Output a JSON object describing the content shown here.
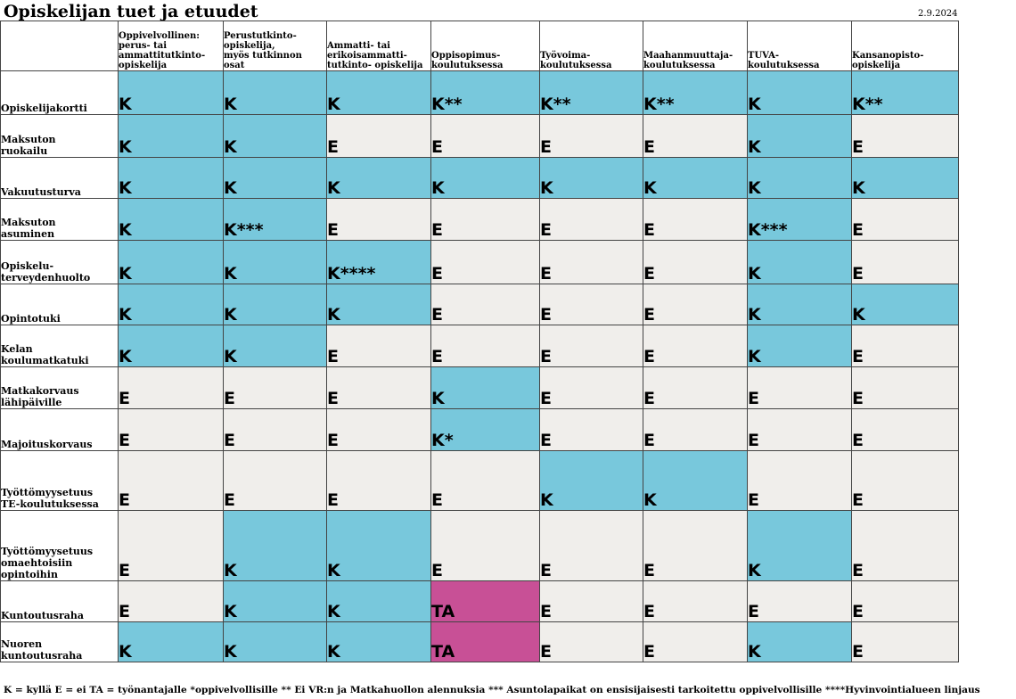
{
  "title": "Opiskelijan tuet ja etuudet",
  "date": "2.9.2024",
  "columns": [
    "Oppivelvollinen:\nperus- tai\nammattitutkinto-\nopiskelija",
    "Perustutkinto-\nopiskelija,\nmyös tutkinnon\nosat",
    "Ammatti- tai\nerikoisammatti-\ntutkinto- opiskelija",
    "Oppisopimus-\nkoulutuksessa",
    "Työvoima-\nkoulutuksessa",
    "Maahanmuuttaja-\nkoulutuksessa",
    "TUVA-\nkoulutuksessa",
    "Kansanopisto-\nopiskelija"
  ],
  "rows": [
    {
      "label": "Opiskelijakortti",
      "cells": [
        "K",
        "K",
        "K",
        "K**",
        "K**",
        "K**",
        "K",
        "K**"
      ]
    },
    {
      "label": "Maksuton\nruokailu",
      "cells": [
        "K",
        "K",
        "E",
        "E",
        "E",
        "E",
        "K",
        "E"
      ]
    },
    {
      "label": "Vakuutusturva",
      "cells": [
        "K",
        "K",
        "K",
        "K",
        "K",
        "K",
        "K",
        "K"
      ]
    },
    {
      "label": "Maksuton\nasuminen",
      "cells": [
        "K",
        "K***",
        "E",
        "E",
        "E",
        "E",
        "K***",
        "E"
      ]
    },
    {
      "label": "Opiskelu-\nterveydenhuolto",
      "cells": [
        "K",
        "K",
        "K****",
        "E",
        "E",
        "E",
        "K",
        "E"
      ]
    },
    {
      "label": "Opintotuki",
      "cells": [
        "K",
        "K",
        "K",
        "E",
        "E",
        "E",
        "K",
        "K"
      ]
    },
    {
      "label": "Kelan\nkoulumatkatuki",
      "cells": [
        "K",
        "K",
        "E",
        "E",
        "E",
        "E",
        "K",
        "E"
      ]
    },
    {
      "label": "Matkakorvaus\nlähipäiville",
      "cells": [
        "E",
        "E",
        "E",
        "K",
        "E",
        "E",
        "E",
        "E"
      ]
    },
    {
      "label": "Majoituskorvaus",
      "cells": [
        "E",
        "E",
        "E",
        "K*",
        "E",
        "E",
        "E",
        "E"
      ]
    },
    {
      "label": "Työttömyysetuus\nTE-koulutuksessa",
      "cells": [
        "E",
        "E",
        "E",
        "E",
        "K",
        "K",
        "E",
        "E"
      ]
    },
    {
      "label": "Työttömyysetuus\nomaehtoisiin\nopintoihin",
      "cells": [
        "E",
        "K",
        "K",
        "E",
        "E",
        "E",
        "K",
        "E"
      ]
    },
    {
      "label": "Kuntoutusraha",
      "cells": [
        "E",
        "K",
        "K",
        "TA",
        "E",
        "E",
        "E",
        "E"
      ]
    },
    {
      "label": "Nuoren\nkuntoutusraha",
      "cells": [
        "K",
        "K",
        "K",
        "TA",
        "E",
        "E",
        "K",
        "E"
      ]
    }
  ],
  "legend": "K = kyllä E = ei TA = työnantajalle *oppivelvollisille ** Ei VR:n ja Matkahuollon alennuksia *** Asuntolapaikat on  ensisijaisesti tarkoitettu oppivelvollisille ****Hyvinvointialueen linjaus",
  "colors": {
    "K": "#78c8dc",
    "E": "#f0eeeb",
    "TA": "#c85096"
  }
}
